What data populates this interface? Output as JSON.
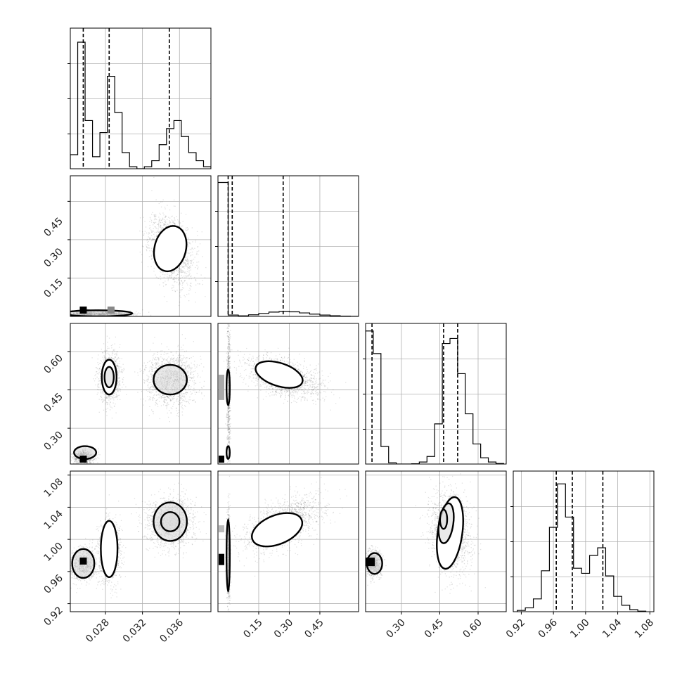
{
  "chart_data": {
    "type": "corner",
    "panels": [
      {
        "name": "hist-p0",
        "type": "histogram",
        "x_range": [
          0.0242,
          0.0394
        ],
        "bins": [
          0.0242,
          0.025,
          0.0258,
          0.0266,
          0.0274,
          0.0282,
          0.029,
          0.0298,
          0.0306,
          0.0314,
          0.0322,
          0.033,
          0.0338,
          0.0346,
          0.0354,
          0.0362,
          0.037,
          0.0378,
          0.0386,
          0.0394
        ],
        "counts": [
          0.35,
          3.15,
          1.2,
          0.3,
          0.9,
          2.3,
          1.4,
          0.4,
          0.05,
          0,
          0.05,
          0.2,
          0.6,
          1.0,
          1.2,
          0.8,
          0.4,
          0.2,
          0.05
        ],
        "y_max": 3.5,
        "quantiles": [
          0.0256,
          0.0284,
          0.0349
        ]
      },
      {
        "name": "hist-p1",
        "type": "histogram",
        "x_range": [
          -0.05,
          0.64
        ],
        "bins": [
          -0.05,
          0.0,
          0.05,
          0.1,
          0.15,
          0.2,
          0.25,
          0.3,
          0.35,
          0.4,
          0.45,
          0.5,
          0.55,
          0.6,
          0.64
        ],
        "counts": [
          1.0,
          0.01,
          0.004,
          0.012,
          0.022,
          0.032,
          0.036,
          0.034,
          0.026,
          0.017,
          0.01,
          0.005,
          0.002,
          0.001
        ],
        "y_max": 1.05,
        "quantiles": [
          0.0,
          0.02,
          0.27
        ]
      },
      {
        "name": "hist-p2",
        "type": "histogram",
        "x_range": [
          0.16,
          0.71
        ],
        "bins": [
          0.16,
          0.19,
          0.22,
          0.25,
          0.28,
          0.31,
          0.34,
          0.37,
          0.4,
          0.43,
          0.46,
          0.49,
          0.52,
          0.55,
          0.58,
          0.61,
          0.64,
          0.67,
          0.7
        ],
        "counts": [
          5.3,
          4.4,
          0.7,
          0.05,
          0,
          0,
          0.01,
          0.08,
          0.3,
          1.6,
          4.8,
          5.0,
          3.6,
          2.0,
          0.8,
          0.25,
          0.08,
          0.02
        ],
        "y_max": 5.6,
        "quantiles": [
          0.185,
          0.465,
          0.52
        ]
      },
      {
        "name": "hist-p3",
        "type": "histogram",
        "x_range": [
          0.91,
          1.085
        ],
        "bins": [
          0.915,
          0.925,
          0.935,
          0.945,
          0.955,
          0.965,
          0.975,
          0.985,
          0.995,
          1.005,
          1.015,
          1.025,
          1.035,
          1.045,
          1.055,
          1.065,
          1.075
        ],
        "counts": [
          0.05,
          0.15,
          0.5,
          1.6,
          3.3,
          5.0,
          3.7,
          1.7,
          1.5,
          2.2,
          2.5,
          1.4,
          0.6,
          0.25,
          0.08,
          0.02
        ],
        "y_max": 5.5,
        "quantiles": [
          0.9635,
          0.9835,
          1.0215
        ]
      },
      {
        "name": "scatter-p1-vs-p0",
        "type": "2d_density",
        "x_range": [
          0.0242,
          0.0394
        ],
        "y_range": [
          0.0,
          0.55
        ],
        "modes": [
          {
            "center": [
              0.0351,
              0.26
            ],
            "spread": [
              0.0012,
              0.07
            ],
            "weight": 1.0,
            "corr": -0.35
          },
          {
            "center": [
              0.0258,
              0.01
            ],
            "spread": [
              0.001,
              0.006
            ],
            "weight": 0.5,
            "corr": 0
          },
          {
            "center": [
              0.0285,
              0.01
            ],
            "spread": [
              0.0012,
              0.006
            ],
            "weight": 0.5,
            "corr": 0
          }
        ],
        "contour_outlines": [
          {
            "center": [
              0.035,
              0.265
            ],
            "radii": [
              0.0017,
              0.09
            ],
            "tilt": -0.35
          },
          {
            "center": [
              0.0272,
              0.012
            ],
            "radii": [
              0.0037,
              0.012
            ],
            "tilt": 0
          }
        ]
      },
      {
        "name": "scatter-p2-vs-p0",
        "type": "2d_density",
        "x_range": [
          0.0242,
          0.0394
        ],
        "y_range": [
          0.16,
          0.71
        ],
        "modes": [
          {
            "center": [
              0.0284,
              0.5
            ],
            "spread": [
              0.0006,
              0.05
            ],
            "weight": 0.7,
            "corr": 0
          },
          {
            "center": [
              0.035,
              0.49
            ],
            "spread": [
              0.0013,
              0.05
            ],
            "weight": 1.0,
            "corr": 0
          },
          {
            "center": [
              0.0256,
              0.19
            ],
            "spread": [
              0.0006,
              0.015
            ],
            "weight": 0.5,
            "corr": 0
          }
        ],
        "contour_outlines": [
          {
            "center": [
              0.0284,
              0.5
            ],
            "radii": [
              0.0008,
              0.068
            ],
            "tilt": 0
          },
          {
            "center": [
              0.0284,
              0.5
            ],
            "radii": [
              0.0005,
              0.04
            ],
            "tilt": 0
          },
          {
            "center": [
              0.035,
              0.49
            ],
            "radii": [
              0.0018,
              0.058
            ],
            "tilt": 0
          },
          {
            "center": [
              0.0258,
              0.205
            ],
            "radii": [
              0.0012,
              0.025
            ],
            "tilt": 0
          }
        ]
      },
      {
        "name": "scatter-p2-vs-p1",
        "type": "2d_density",
        "x_range": [
          -0.05,
          0.64
        ],
        "y_range": [
          0.16,
          0.71
        ],
        "modes": [
          {
            "center": [
              0.27,
              0.5
            ],
            "spread": [
              0.09,
              0.04
            ],
            "weight": 1.0,
            "corr": -0.45
          },
          {
            "center": [
              0.0,
              0.45
            ],
            "spread": [
              0.004,
              0.15
            ],
            "weight": 0.5,
            "corr": 0
          }
        ],
        "contour_outlines": [
          {
            "center": [
              0.25,
              0.51
            ],
            "radii": [
              0.12,
              0.045
            ],
            "tilt": -0.45
          },
          {
            "center": [
              0.0,
              0.46
            ],
            "radii": [
              0.008,
              0.07
            ],
            "tilt": 0
          },
          {
            "center": [
              0.0,
              0.205
            ],
            "radii": [
              0.008,
              0.025
            ],
            "tilt": 0
          }
        ]
      },
      {
        "name": "scatter-p3-vs-p0",
        "type": "2d_density",
        "x_range": [
          0.0242,
          0.0394
        ],
        "y_range": [
          0.91,
          1.085
        ],
        "modes": [
          {
            "center": [
              0.0284,
              0.985
            ],
            "spread": [
              0.0006,
              0.02
            ],
            "weight": 0.7,
            "corr": 0
          },
          {
            "center": [
              0.035,
              1.022
            ],
            "spread": [
              0.0013,
              0.015
            ],
            "weight": 1.0,
            "corr": 0
          },
          {
            "center": [
              0.0256,
              0.97
            ],
            "spread": [
              0.0007,
              0.01
            ],
            "weight": 0.6,
            "corr": 0
          }
        ],
        "contour_outlines": [
          {
            "center": [
              0.0284,
              0.988
            ],
            "radii": [
              0.0009,
              0.035
            ],
            "tilt": 0
          },
          {
            "center": [
              0.035,
              1.022
            ],
            "radii": [
              0.0018,
              0.024
            ],
            "tilt": 0
          },
          {
            "center": [
              0.035,
              1.022
            ],
            "radii": [
              0.001,
              0.012
            ],
            "tilt": 0
          },
          {
            "center": [
              0.0256,
              0.97
            ],
            "radii": [
              0.0012,
              0.018
            ],
            "tilt": 0
          }
        ]
      },
      {
        "name": "scatter-p3-vs-p1",
        "type": "2d_density",
        "x_range": [
          -0.05,
          0.64
        ],
        "y_range": [
          0.91,
          1.085
        ],
        "modes": [
          {
            "center": [
              0.27,
              1.02
            ],
            "spread": [
              0.1,
              0.018
            ],
            "weight": 1.0,
            "corr": 0.6
          },
          {
            "center": [
              0.0,
              0.98
            ],
            "spread": [
              0.004,
              0.03
            ],
            "weight": 0.5,
            "corr": 0
          }
        ],
        "contour_outlines": [
          {
            "center": [
              0.24,
              1.012
            ],
            "radii": [
              0.13,
              0.018
            ],
            "tilt": 0.55
          },
          {
            "center": [
              0.0,
              0.98
            ],
            "radii": [
              0.008,
              0.045
            ],
            "tilt": 0
          }
        ]
      },
      {
        "name": "scatter-p3-vs-p2",
        "type": "2d_density",
        "x_range": [
          0.16,
          0.71
        ],
        "y_range": [
          0.91,
          1.085
        ],
        "modes": [
          {
            "center": [
              0.49,
              1.01
            ],
            "spread": [
              0.04,
              0.025
            ],
            "weight": 1.0,
            "corr": -0.2
          },
          {
            "center": [
              0.19,
              0.97
            ],
            "spread": [
              0.015,
              0.008
            ],
            "weight": 0.6,
            "corr": 0
          }
        ],
        "contour_outlines": [
          {
            "center": [
              0.49,
              1.008
            ],
            "radii": [
              0.048,
              0.045
            ],
            "tilt": -0.2
          },
          {
            "center": [
              0.475,
              1.02
            ],
            "radii": [
              0.028,
              0.025
            ],
            "tilt": -0.2
          },
          {
            "center": [
              0.465,
              1.025
            ],
            "radii": [
              0.014,
              0.012
            ],
            "tilt": 0
          },
          {
            "center": [
              0.195,
              0.97
            ],
            "radii": [
              0.03,
              0.013
            ],
            "tilt": 0
          }
        ]
      }
    ],
    "axis_ticks": {
      "x_col0": [
        "0.028",
        "0.032",
        "0.036"
      ],
      "x_col1": [
        "0.15",
        "0.30",
        "0.45"
      ],
      "x_col2": [
        "0.30",
        "0.45",
        "0.60"
      ],
      "x_col3": [
        "0.92",
        "0.96",
        "1.00",
        "1.04",
        "1.08"
      ],
      "y_row1": [
        "0.15",
        "0.30",
        "0.45"
      ],
      "y_row2": [
        "0.30",
        "0.45",
        "0.60"
      ],
      "y_row3": [
        "0.92",
        "0.96",
        "1.00",
        "1.04",
        "1.08"
      ]
    },
    "grid": true,
    "quantile_lines": "dashed"
  }
}
